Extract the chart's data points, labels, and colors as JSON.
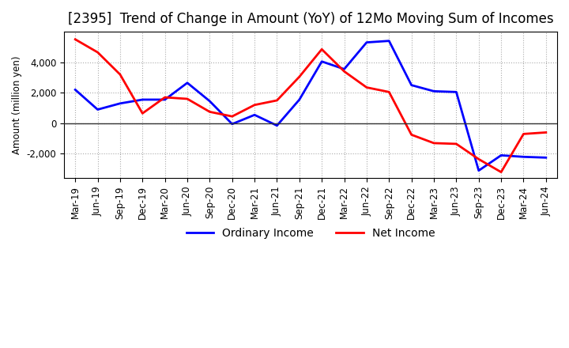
{
  "title": "[2395]  Trend of Change in Amount (YoY) of 12Mo Moving Sum of Incomes",
  "ylabel": "Amount (million yen)",
  "x_labels": [
    "Mar-19",
    "Jun-19",
    "Sep-19",
    "Dec-19",
    "Mar-20",
    "Jun-20",
    "Sep-20",
    "Dec-20",
    "Mar-21",
    "Jun-21",
    "Sep-21",
    "Dec-21",
    "Mar-22",
    "Jun-22",
    "Sep-22",
    "Dec-22",
    "Mar-23",
    "Jun-23",
    "Sep-23",
    "Dec-23",
    "Mar-24",
    "Jun-24"
  ],
  "ordinary_income": [
    2200,
    900,
    1300,
    1550,
    1550,
    2650,
    1450,
    -50,
    550,
    -150,
    1550,
    4050,
    3550,
    5300,
    5400,
    2500,
    2100,
    2050,
    -3100,
    -2100,
    -2200,
    -2250
  ],
  "net_income": [
    5500,
    4650,
    3200,
    650,
    1700,
    1600,
    750,
    450,
    1200,
    1500,
    3050,
    4850,
    3400,
    2350,
    2050,
    -750,
    -1300,
    -1350,
    -2350,
    -3200,
    -700,
    -600
  ],
  "ordinary_income_color": "#0000ff",
  "net_income_color": "#ff0000",
  "background_color": "#ffffff",
  "plot_bg_color": "#ffffff",
  "grid_color": "#aaaaaa",
  "ylim": [
    -3600,
    6000
  ],
  "yticks": [
    -2000,
    0,
    2000,
    4000
  ],
  "line_width": 2.0,
  "title_fontsize": 12,
  "legend_fontsize": 10,
  "tick_fontsize": 8.5
}
